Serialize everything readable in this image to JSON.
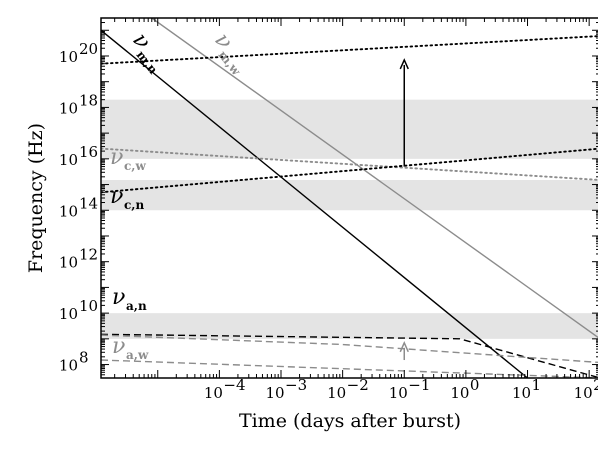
{
  "chart_data": {
    "type": "line",
    "title": "",
    "xlabel": "Time (days after burst)",
    "ylabel": "Frequency (Hz)",
    "xscale": "log",
    "yscale": "log",
    "xlim": [
      1.2e-06,
      150
    ],
    "ylim": [
      30000000,
      3000000000000000000000
    ],
    "x_ticks": [
      {
        "value": 0.0001,
        "label": "10",
        "exp": "−4"
      },
      {
        "value": 0.001,
        "label": "10",
        "exp": "−3"
      },
      {
        "value": 0.01,
        "label": "10",
        "exp": "−2"
      },
      {
        "value": 0.1,
        "label": "10",
        "exp": "−1"
      },
      {
        "value": 1,
        "label": "10",
        "exp": "0"
      },
      {
        "value": 10,
        "label": "10",
        "exp": "1"
      },
      {
        "value": 100,
        "label": "10",
        "exp": "2"
      }
    ],
    "y_ticks": [
      {
        "value": 100000000,
        "label": "10",
        "exp": "8"
      },
      {
        "value": 10000000000,
        "label": "10",
        "exp": "10"
      },
      {
        "value": 1000000000000,
        "label": "10",
        "exp": "12"
      },
      {
        "value": 100000000000000,
        "label": "10",
        "exp": "14"
      },
      {
        "value": 10000000000000000,
        "label": "10",
        "exp": "16"
      },
      {
        "value": 1000000000000000000,
        "label": "10",
        "exp": "18"
      },
      {
        "value": 100000000000000000000,
        "label": "10",
        "exp": "20"
      }
    ],
    "bands": [
      {
        "y": [
          1000000000,
          10000000000
        ],
        "color": "#e4e4e4"
      },
      {
        "y": [
          100000000000000,
          1500000000000000
        ],
        "color": "#e4e4e4"
      },
      {
        "y": [
          10000000000000000,
          2000000000000000000
        ],
        "color": "#e4e4e4"
      }
    ],
    "series": [
      {
        "label_main": "ν",
        "label_sub": "m,n",
        "color": "#000000",
        "dash": "solid",
        "points": [
          [
            1.2e-06,
            1000000000000000000000
          ],
          [
            10,
            30000000
          ]
        ]
      },
      {
        "label_main": "ν",
        "label_sub": "m,w",
        "color": "#8c8c8c",
        "dash": "solid",
        "points": [
          [
            8e-06,
            3000000000000000000000
          ],
          [
            150,
            1000000000
          ]
        ]
      },
      {
        "label_main": "ν",
        "label_sub": "c,w",
        "color": "#8c8c8c",
        "dash": "dotted",
        "points": [
          [
            1.2e-06,
            25000000000000000
          ],
          [
            150,
            1500000000000000
          ]
        ]
      },
      {
        "label_main": "ν",
        "label_sub": "c,n",
        "color": "#000000",
        "dash": "dotted",
        "points": [
          [
            1.2e-06,
            500000000000000
          ],
          [
            150,
            25000000000000000
          ]
        ]
      },
      {
        "label_main": "",
        "label_sub": "",
        "color": "#000000",
        "dash": "dotted",
        "points": [
          [
            1.2e-06,
            50000000000000000000
          ],
          [
            150,
            600000000000000000000
          ]
        ]
      },
      {
        "label_main": "ν",
        "label_sub": "a,n",
        "color": "#000000",
        "dash": "dashed",
        "points": [
          [
            1.2e-06,
            1500000000
          ],
          [
            0.8,
            1000000000
          ],
          [
            150,
            30000000
          ]
        ]
      },
      {
        "label_main": "",
        "label_sub": "",
        "color": "#8c8c8c",
        "dash": "dashed",
        "points": [
          [
            1.2e-06,
            1400000000
          ],
          [
            0.01,
            600000000
          ],
          [
            150,
            120000000
          ]
        ]
      },
      {
        "label_main": "ν",
        "label_sub": "a,w",
        "color": "#8c8c8c",
        "dash": "dashed",
        "points": [
          [
            1.2e-06,
            150000000
          ],
          [
            150,
            30000000
          ]
        ]
      }
    ],
    "arrows": [
      {
        "x": 0.1,
        "y_from": 5000000000000000,
        "y_to": 70000000000000000000,
        "color": "#000000"
      },
      {
        "x": 0.1,
        "y_from": 150000000,
        "y_to": 700000000,
        "color": "#8c8c8c"
      }
    ],
    "grid": false,
    "legend": "none"
  }
}
